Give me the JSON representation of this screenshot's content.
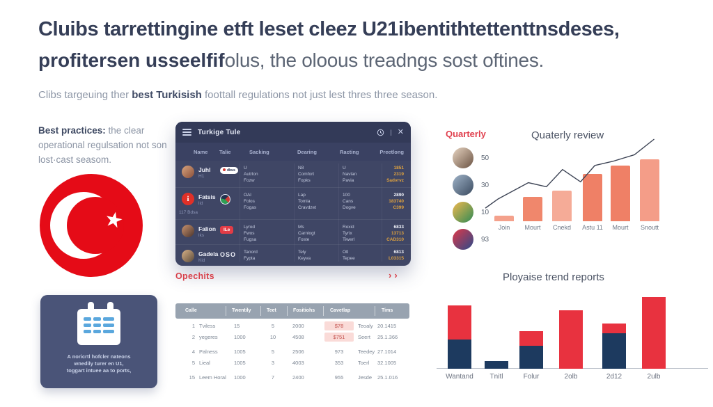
{
  "colors": {
    "headline": "#353e57",
    "accent_red": "#d8414b",
    "flag_red": "#e50b17",
    "window_bg": "#3f4665",
    "window_header_bg": "#333a58",
    "gold": "#dfa23f",
    "salmon": "#ef8066",
    "navy": "#1d3a5f",
    "stack_red": "#e8323f",
    "highlight_pink": "#fadbd8"
  },
  "header": {
    "headline_line1": "Cluibs tarrettingine etft leset cleez U21ibentithtettenttnsdeses,",
    "headline_line2_bold": "profitersen usseelfif",
    "headline_line2_rest": "olus, the oloous treadngs sost oftines.",
    "subheadline_prefix": "Clibs targeuing ther ",
    "subheadline_bold": "best Turkisish",
    "subheadline_rest": " foottall regulations not just lest thres three season."
  },
  "left": {
    "best_practices_bold": "Best practices:",
    "best_practices_rest": " the clear operational regulsation not son lost·cast seasom.",
    "flag_star": "★",
    "calendar_card": {
      "caption_lines": [
        "A noricrtl hofcler nateons",
        "wnedily turer en U1,",
        "toggart intuee aa to ports,"
      ]
    }
  },
  "app_window": {
    "title": "Turkige Tule",
    "columns": [
      "Name",
      "Talie",
      "Sacking",
      "Dearing",
      "Racting",
      "Preetlong"
    ],
    "rows": [
      {
        "name": "Juhl",
        "sub": "H1",
        "extra": "",
        "avatar": "photo1",
        "badge": {
          "type": "pill-white",
          "text": "dbus"
        },
        "cols": [
          [
            "U",
            "Autrlon",
            "Fozw"
          ],
          [
            "N8",
            "Comfort",
            "Fopks"
          ],
          [
            "U",
            "Navlan",
            "Pavia"
          ]
        ],
        "stats": [
          "1851",
          "2319",
          "Sadvrvz"
        ],
        "stats_first_white": false
      },
      {
        "name": "Fatsis",
        "sub": "lid",
        "extra": "117 Bdsa",
        "avatar": "logo-red-i",
        "badge": {
          "type": "circle-green",
          "text": ""
        },
        "cols": [
          [
            "OAl",
            "Folos",
            "Fogas"
          ],
          [
            "Lap",
            "Tomia",
            "Cravdzet"
          ],
          [
            "100",
            "Cans",
            "Dogve"
          ]
        ],
        "stats": [
          "2890",
          "183740",
          "C399"
        ],
        "stats_first_white": true
      },
      {
        "name": "Falion",
        "sub": "lks",
        "extra": "",
        "avatar": "photo2",
        "badge": {
          "type": "pill-red",
          "text": "ILe"
        },
        "cols": [
          [
            "Lyrod",
            "Fwos",
            "Fugsa"
          ],
          [
            "Ms",
            "Carnlogt",
            "Foste"
          ],
          [
            "Roxid",
            "Tyrix",
            "Tiwerl"
          ]
        ],
        "stats": [
          "6833",
          "13713",
          "CAD310"
        ],
        "stats_first_white": true
      },
      {
        "name": "Gadela",
        "sub": "Kid",
        "extra": "",
        "avatar": "photo3",
        "badge": {
          "type": "text-white",
          "text": "OSO"
        },
        "cols": [
          [
            "Tanord",
            "Fypta"
          ],
          [
            "Tely",
            "Keyva"
          ],
          [
            "Otl",
            "Tepee"
          ]
        ],
        "stats": [
          "6813",
          "L03315"
        ],
        "stats_first_white": true
      }
    ]
  },
  "opechits": {
    "title": "Opechits",
    "arrows": "››",
    "columns": [
      "Calle",
      "Twentily",
      "Teet",
      "Fositiohs",
      "Cavetlap",
      "Tims"
    ],
    "rows": [
      {
        "cells": [
          "1",
          "Tviless",
          "15",
          "5",
          "2000",
          "$78",
          "Teoaly",
          "20.1415"
        ],
        "highlight_price": true,
        "spacer_before": false
      },
      {
        "cells": [
          "2",
          "yegeres",
          "1000",
          "10",
          "4508",
          "$751",
          "Seert",
          "25.1.366"
        ],
        "highlight_price": true,
        "spacer_before": false
      },
      {
        "cells": [
          "4",
          "Palness",
          "1005",
          "5",
          "2506",
          "973",
          "Teedey",
          "27.1014"
        ],
        "highlight_price": false,
        "spacer_before": true
      },
      {
        "cells": [
          "5",
          "Lieal",
          "1005",
          "3",
          "4003",
          "353",
          "Toerl",
          "32.1005"
        ],
        "highlight_price": false,
        "spacer_before": false
      },
      {
        "cells": [
          "15",
          "Leem Horal",
          "1000",
          "7",
          "2400",
          "955",
          "Jesde",
          "25.1.016"
        ],
        "highlight_price": false,
        "spacer_before": true
      }
    ]
  },
  "quarterly": {
    "label": "Quarterly",
    "avatars": [
      {
        "value": "50",
        "gradient": "linear-gradient(135deg,#e8d5c2,#6a5242)"
      },
      {
        "value": "30",
        "gradient": "linear-gradient(135deg,#9fb3c8,#3a4a5f)"
      },
      {
        "value": "10",
        "gradient": "linear-gradient(135deg,#f0b84f,#2f8a55)"
      },
      {
        "value": "93",
        "gradient": "linear-gradient(135deg,#e03848,#2a4a8a)"
      }
    ]
  },
  "chart_data": [
    {
      "type": "bar",
      "title": "Quaterly review",
      "categories": [
        "Join",
        "Mourt",
        "Cnekd",
        "Astu 11",
        "Mourt",
        "Snoutt"
      ],
      "values": [
        7,
        30,
        37,
        58,
        68,
        75
      ],
      "bar_colors": [
        "#f4a18c",
        "#f0876c",
        "#f5ab97",
        "#ef8066",
        "#ef8066",
        "#f49d88"
      ],
      "ylim": [
        0,
        100
      ],
      "grid": false,
      "legend_position": "none",
      "line_overlay": {
        "color": "#3d4455",
        "points": [
          [
            0,
            16
          ],
          [
            7,
            27
          ],
          [
            24,
            47
          ],
          [
            34,
            42
          ],
          [
            43,
            63
          ],
          [
            53,
            48
          ],
          [
            61,
            68
          ],
          [
            71,
            73
          ],
          [
            83,
            81
          ],
          [
            94,
            100
          ]
        ]
      }
    },
    {
      "type": "bar",
      "subtype": "stacked",
      "title": "Ployaise trend reports",
      "categories": [
        "Wantand",
        "Tnitl",
        "Folur",
        "2olb",
        "2d12",
        "2ulb"
      ],
      "series": [
        {
          "name": "navy",
          "color": "#1d3a5f",
          "values": [
            42,
            11,
            33,
            0,
            51,
            0
          ]
        },
        {
          "name": "red",
          "color": "#e8323f",
          "values": [
            49,
            0,
            21,
            84,
            14,
            103
          ]
        }
      ],
      "ylim": [
        0,
        110
      ],
      "grid": false,
      "legend_position": "none"
    }
  ]
}
